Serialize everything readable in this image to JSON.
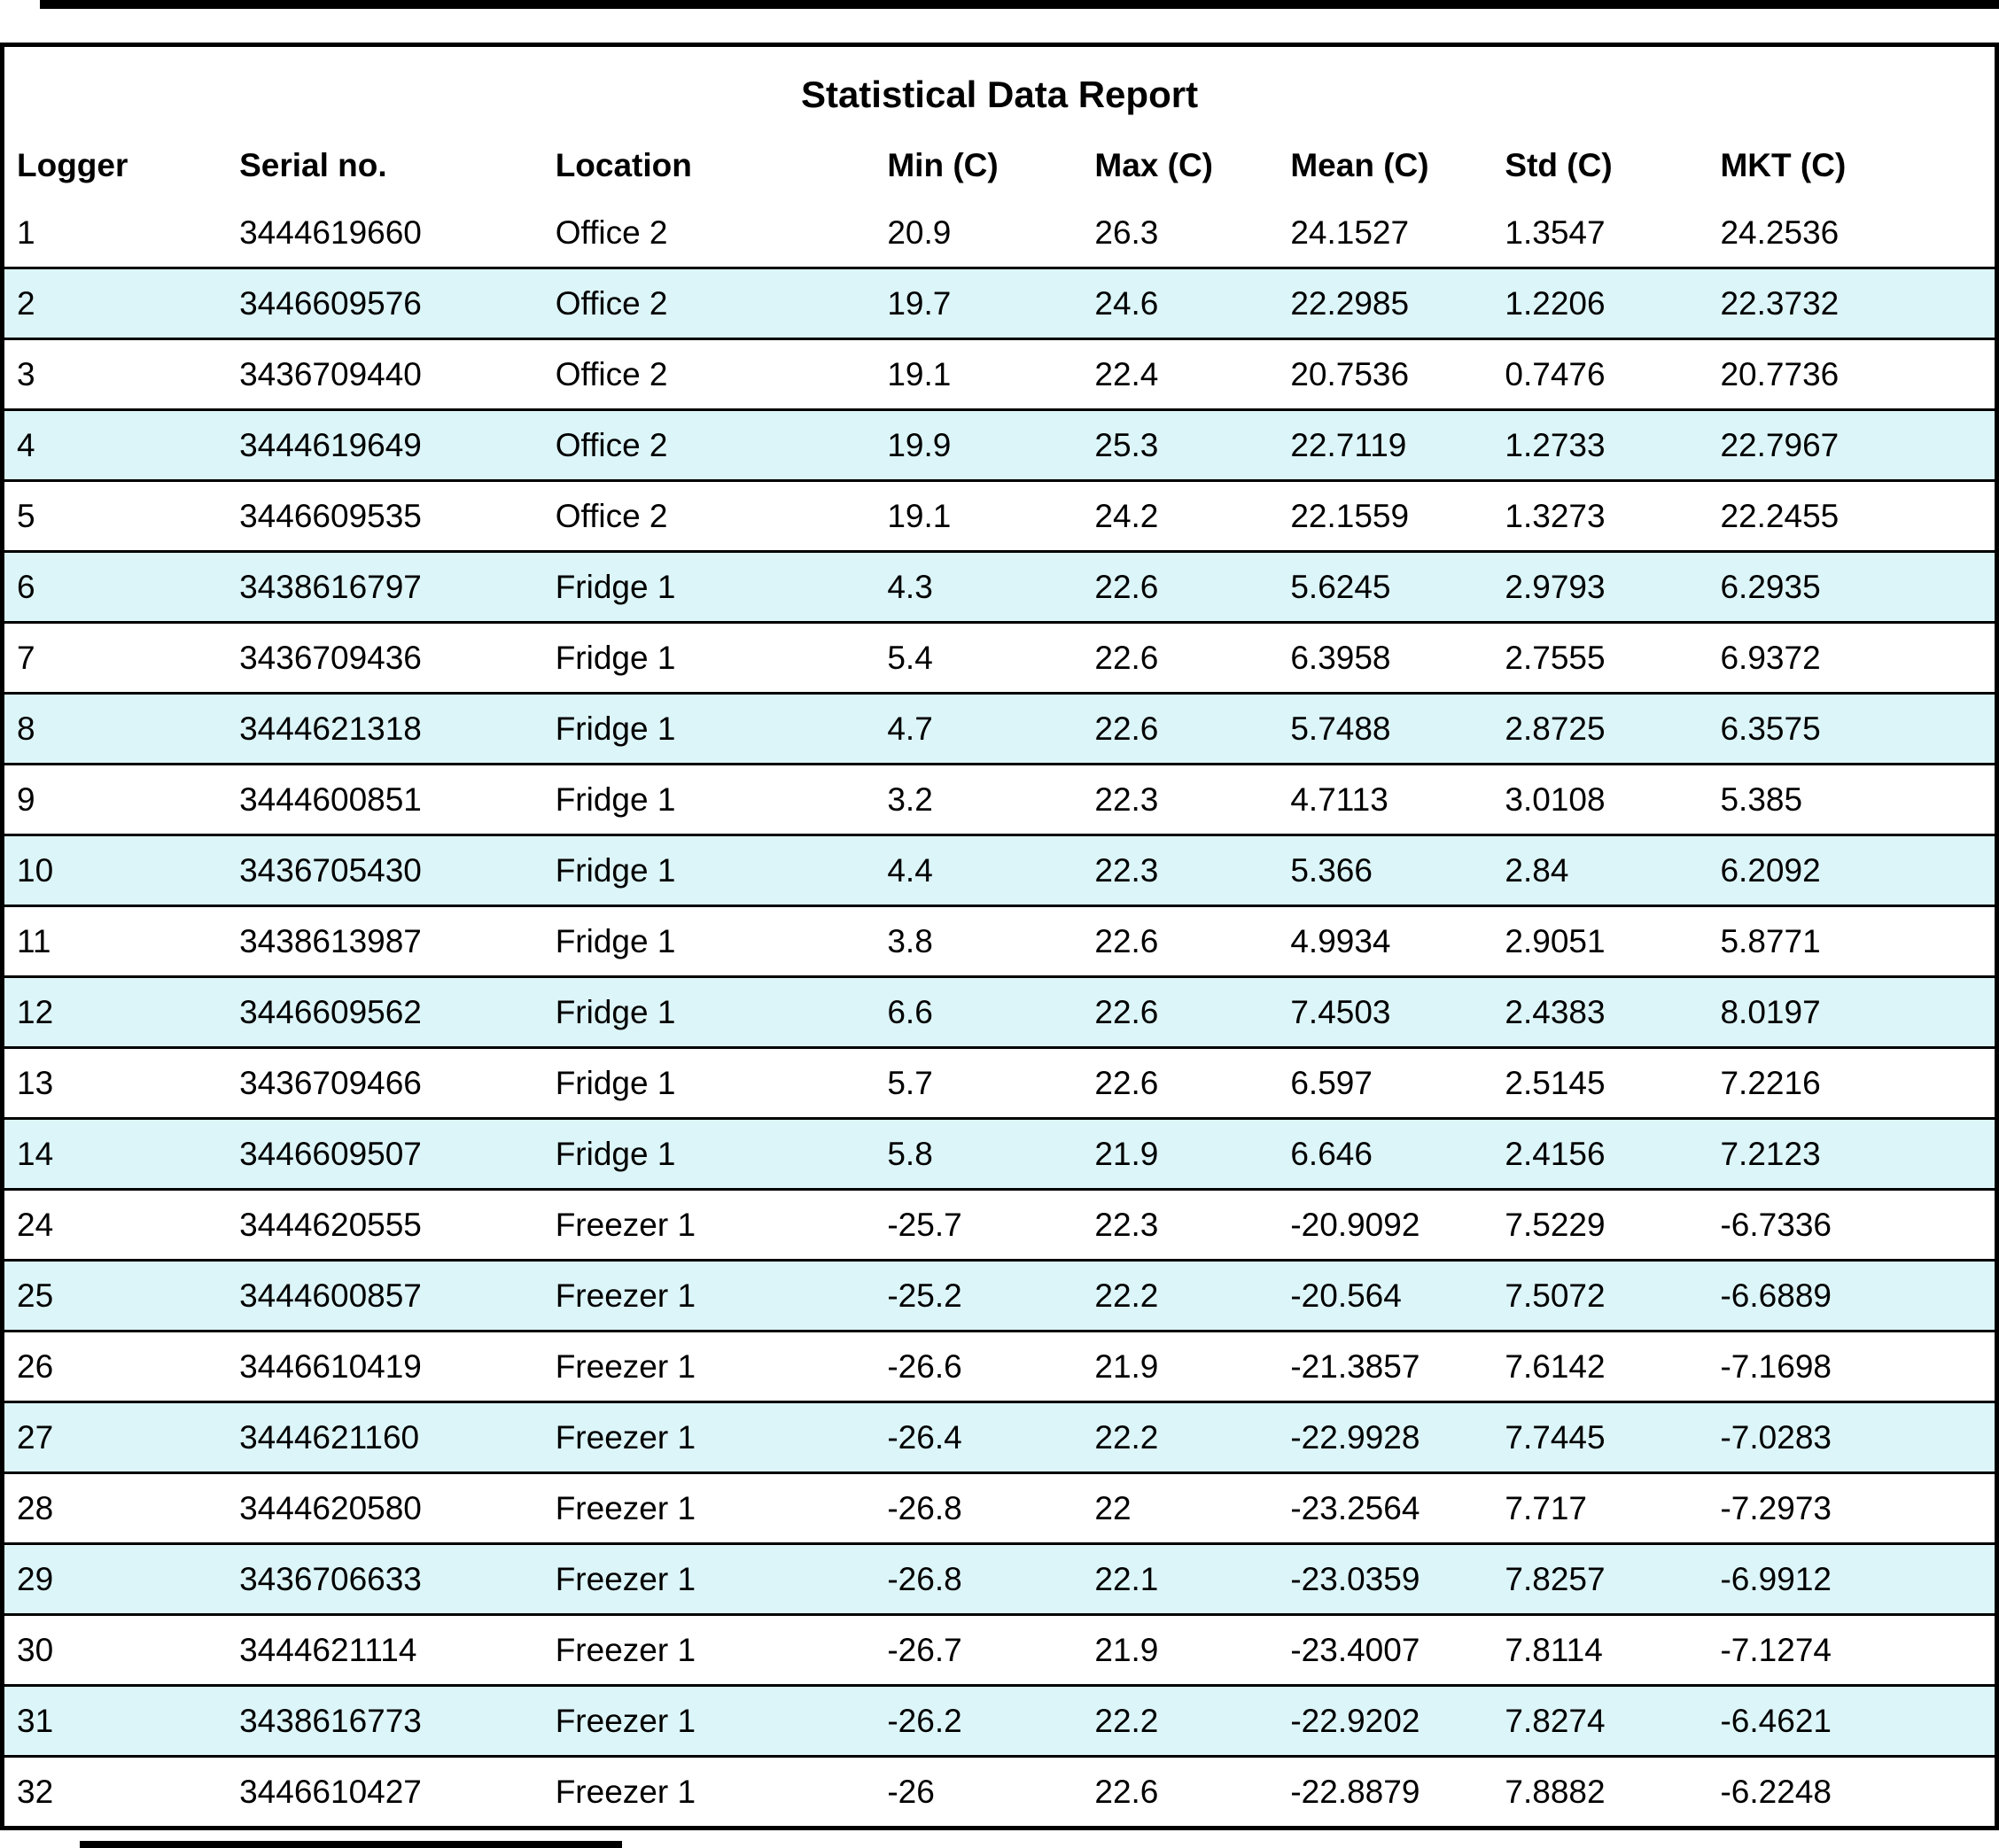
{
  "report": {
    "title": "Statistical Data Report",
    "columns": [
      "Logger",
      "Serial no.",
      "Location",
      "Min (C)",
      "Max (C)",
      "Mean (C)",
      "Std (C)",
      "MKT (C)"
    ],
    "rows": [
      [
        "1",
        "3444619660",
        "Office 2",
        "20.9",
        "26.3",
        "24.1527",
        "1.3547",
        "24.2536"
      ],
      [
        "2",
        "3446609576",
        "Office 2",
        "19.7",
        "24.6",
        "22.2985",
        "1.2206",
        "22.3732"
      ],
      [
        "3",
        "3436709440",
        "Office 2",
        "19.1",
        "22.4",
        "20.7536",
        "0.7476",
        "20.7736"
      ],
      [
        "4",
        "3444619649",
        "Office 2",
        "19.9",
        "25.3",
        "22.7119",
        "1.2733",
        "22.7967"
      ],
      [
        "5",
        "3446609535",
        "Office 2",
        "19.1",
        "24.2",
        "22.1559",
        "1.3273",
        "22.2455"
      ],
      [
        "6",
        "3438616797",
        "Fridge 1",
        "4.3",
        "22.6",
        "5.6245",
        "2.9793",
        "6.2935"
      ],
      [
        "7",
        "3436709436",
        "Fridge 1",
        "5.4",
        "22.6",
        "6.3958",
        "2.7555",
        "6.9372"
      ],
      [
        "8",
        "3444621318",
        "Fridge 1",
        "4.7",
        "22.6",
        "5.7488",
        "2.8725",
        "6.3575"
      ],
      [
        "9",
        "3444600851",
        "Fridge 1",
        "3.2",
        "22.3",
        "4.7113",
        "3.0108",
        "5.385"
      ],
      [
        "10",
        "3436705430",
        "Fridge 1",
        "4.4",
        "22.3",
        "5.366",
        "2.84",
        "6.2092"
      ],
      [
        "11",
        "3438613987",
        "Fridge 1",
        "3.8",
        "22.6",
        "4.9934",
        "2.9051",
        "5.8771"
      ],
      [
        "12",
        "3446609562",
        "Fridge 1",
        "6.6",
        "22.6",
        "7.4503",
        "2.4383",
        "8.0197"
      ],
      [
        "13",
        "3436709466",
        "Fridge 1",
        "5.7",
        "22.6",
        "6.597",
        "2.5145",
        "7.2216"
      ],
      [
        "14",
        "3446609507",
        "Fridge 1",
        "5.8",
        "21.9",
        "6.646",
        "2.4156",
        "7.2123"
      ],
      [
        "24",
        "3444620555",
        "Freezer 1",
        "-25.7",
        "22.3",
        "-20.9092",
        "7.5229",
        "-6.7336"
      ],
      [
        "25",
        "3444600857",
        "Freezer 1",
        "-25.2",
        "22.2",
        "-20.564",
        "7.5072",
        "-6.6889"
      ],
      [
        "26",
        "3446610419",
        "Freezer 1",
        "-26.6",
        "21.9",
        "-21.3857",
        "7.6142",
        "-7.1698"
      ],
      [
        "27",
        "3444621160",
        "Freezer 1",
        "-26.4",
        "22.2",
        "-22.9928",
        "7.7445",
        "-7.0283"
      ],
      [
        "28",
        "3444620580",
        "Freezer 1",
        "-26.8",
        "22",
        "-23.2564",
        "7.717",
        "-7.2973"
      ],
      [
        "29",
        "3436706633",
        "Freezer 1",
        "-26.8",
        "22.1",
        "-23.0359",
        "7.8257",
        "-6.9912"
      ],
      [
        "30",
        "3444621114",
        "Freezer 1",
        "-26.7",
        "21.9",
        "-23.4007",
        "7.8114",
        "-7.1274"
      ],
      [
        "31",
        "3438616773",
        "Freezer 1",
        "-26.2",
        "22.2",
        "-22.9202",
        "7.8274",
        "-6.4621"
      ],
      [
        "32",
        "3446610427",
        "Freezer 1",
        "-26",
        "22.6",
        "-22.8879",
        "7.8882",
        "-6.2248"
      ]
    ],
    "colors": {
      "stripe": "#DCF5F8",
      "border": "#000000",
      "background": "#FFFFFF"
    }
  }
}
